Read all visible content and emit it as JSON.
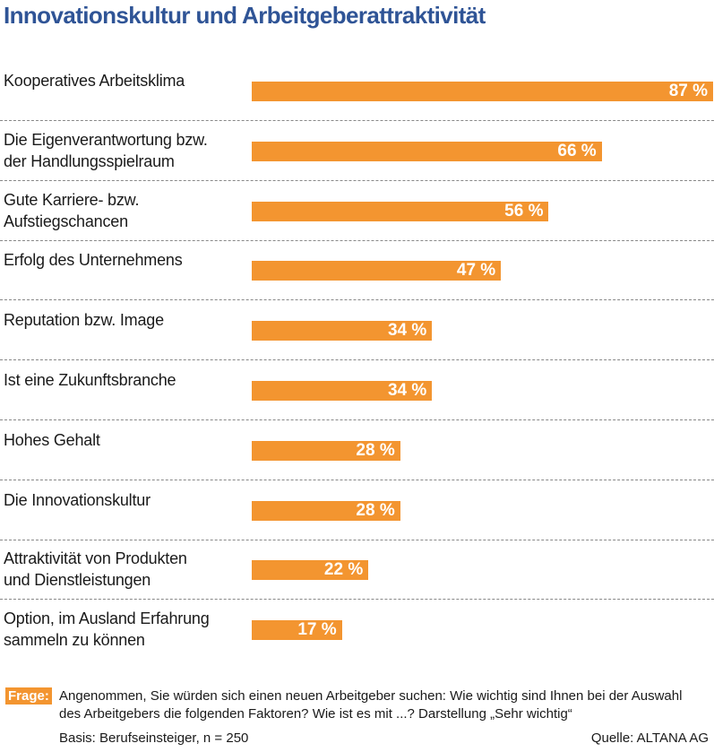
{
  "chart_data": {
    "type": "bar",
    "orientation": "horizontal",
    "title": "Innovationskultur und Arbeitgeberattraktivität",
    "categories": [
      "Kooperatives Arbeitsklima",
      "Die Eigenverantwortung bzw.\nder Handlungsspielraum",
      "Gute Karriere- bzw.\nAufstiegschancen",
      "Erfolg des Unternehmens",
      "Reputation bzw. Image",
      "Ist eine Zukunftsbranche",
      "Hohes Gehalt",
      "Die Innovationskultur",
      "Attraktivität von Produkten\nund Dienstleistungen",
      "Option, im Ausland Erfahrung\nsammeln zu können"
    ],
    "values": [
      87,
      66,
      56,
      47,
      34,
      34,
      28,
      28,
      22,
      17
    ],
    "value_labels": [
      "87 %",
      "66 %",
      "56 %",
      "47 %",
      "34 %",
      "34 %",
      "28 %",
      "28 %",
      "22 %",
      "17 %"
    ],
    "unit": "%",
    "xlim": [
      0,
      87
    ],
    "grid": false,
    "bar_color": "#f39530",
    "title_color": "#2f5496"
  },
  "footer": {
    "frage_label": "Frage:",
    "frage_text": "Angenommen, Sie würden sich einen neuen Arbeitgeber suchen: Wie wichtig sind Ihnen bei der Auswahl des Arbeitgebers die folgenden Faktoren? Wie ist es mit ...? Darstellung „Sehr wichtig“",
    "basis": "Basis: Berufseinsteiger, n = 250",
    "quelle": "Quelle: ALTANA AG"
  }
}
